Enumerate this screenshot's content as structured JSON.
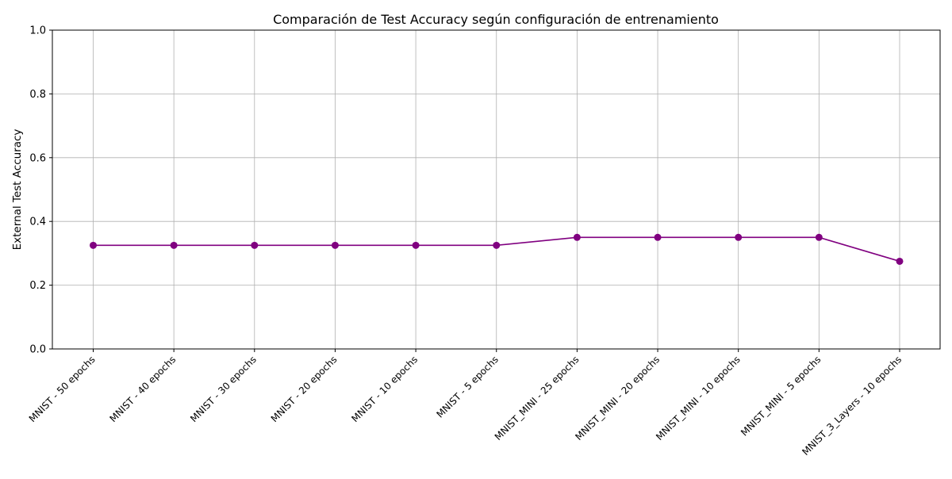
{
  "chart_data": {
    "type": "line",
    "title": "Comparación de Test Accuracy según configuración de entrenamiento",
    "xlabel": "",
    "ylabel": "External Test Accuracy",
    "ylim": [
      0,
      1
    ],
    "yticks": [
      "0.0",
      "0.2",
      "0.4",
      "0.6",
      "0.8",
      "1.0"
    ],
    "grid": true,
    "categories": [
      "MNIST - 50 epochs",
      "MNIST - 40 epochs",
      "MNIST - 30 epochs",
      "MNIST - 20 epochs",
      "MNIST - 10 epochs",
      "MNIST - 5 epochs",
      "MNIST_MINI - 25 epochs",
      "MNIST_MINI - 20 epochs",
      "MNIST_MINI - 10 epochs",
      "MNIST_MINI - 5 epochs",
      "MNIST_3_Layers - 10 epochs"
    ],
    "series": [
      {
        "values": [
          0.325,
          0.325,
          0.325,
          0.325,
          0.325,
          0.325,
          0.35,
          0.35,
          0.35,
          0.35,
          0.275
        ],
        "color": "#800080",
        "marker": "circle"
      }
    ]
  }
}
